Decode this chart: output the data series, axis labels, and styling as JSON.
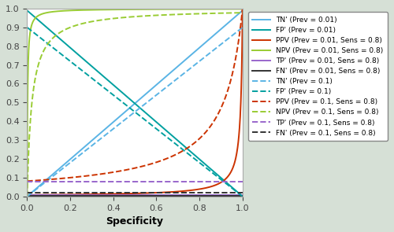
{
  "sensitivity": 0.8,
  "prevalences": [
    0.01,
    0.1
  ],
  "background_color": "#d6e0d6",
  "colors": {
    "TN": "#5ab4e5",
    "FP": "#00a0a0",
    "PPV": "#cc3300",
    "NPV": "#99cc33",
    "TP": "#9966cc",
    "FN": "#333333"
  },
  "xlabel": "Specificity",
  "xlim": [
    0,
    1
  ],
  "ylim": [
    0,
    1
  ],
  "figsize": [
    5.0,
    2.95
  ],
  "dpi": 100
}
